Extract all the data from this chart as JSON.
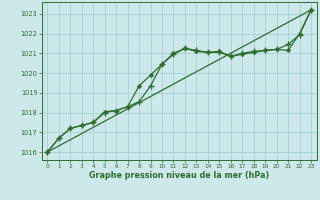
{
  "title": "Graphe pression niveau de la mer (hPa)",
  "bg_color": "#cce8ea",
  "grid_color": "#aad4d6",
  "line_color": "#2d6e2d",
  "marker_color": "#2d6e2d",
  "xlim": [
    -0.5,
    23.5
  ],
  "ylim": [
    1015.6,
    1023.6
  ],
  "yticks": [
    1016,
    1017,
    1018,
    1019,
    1020,
    1021,
    1022,
    1023
  ],
  "xticks": [
    0,
    1,
    2,
    3,
    4,
    5,
    6,
    7,
    8,
    9,
    10,
    11,
    12,
    13,
    14,
    15,
    16,
    17,
    18,
    19,
    20,
    21,
    22,
    23
  ],
  "line1_x": [
    0,
    23
  ],
  "line1_y": [
    1016.0,
    1023.2
  ],
  "line2_x": [
    0,
    1,
    2,
    3,
    4,
    5,
    6,
    7,
    8,
    9,
    10,
    11,
    12,
    13,
    14,
    15,
    16,
    17,
    18,
    19,
    20,
    21,
    22,
    23
  ],
  "line2_y": [
    1016.0,
    1016.7,
    1017.2,
    1017.35,
    1017.5,
    1018.05,
    1018.1,
    1018.3,
    1019.35,
    1019.9,
    1020.45,
    1021.0,
    1021.25,
    1021.1,
    1021.05,
    1021.1,
    1020.85,
    1020.95,
    1021.05,
    1021.15,
    1021.2,
    1021.15,
    1022.0,
    1023.2
  ],
  "line3_x": [
    0,
    1,
    2,
    3,
    4,
    5,
    6,
    7,
    8,
    9,
    10,
    11,
    12,
    13,
    14,
    15,
    16,
    17,
    18,
    19,
    20,
    21,
    22,
    23
  ],
  "line3_y": [
    1016.0,
    1016.7,
    1017.2,
    1017.35,
    1017.5,
    1018.0,
    1018.1,
    1018.3,
    1018.55,
    1019.35,
    1020.45,
    1020.95,
    1021.25,
    1021.15,
    1021.05,
    1021.05,
    1020.85,
    1021.0,
    1021.1,
    1021.15,
    1021.2,
    1021.45,
    1021.95,
    1023.2
  ]
}
